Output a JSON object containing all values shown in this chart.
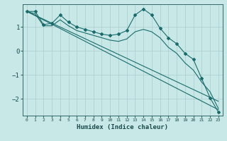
{
  "xlabel": "Humidex (Indice chaleur)",
  "ylabel": "",
  "xlim": [
    -0.5,
    23.5
  ],
  "ylim": [
    -2.7,
    1.95
  ],
  "background_color": "#c8e8e8",
  "grid_color": "#a8cccc",
  "line_color": "#1a6b6b",
  "xticks": [
    0,
    1,
    2,
    3,
    4,
    5,
    6,
    7,
    8,
    9,
    10,
    11,
    12,
    13,
    14,
    15,
    16,
    17,
    18,
    19,
    20,
    21,
    22,
    23
  ],
  "yticks": [
    -2,
    -1,
    0,
    1
  ],
  "series": [
    {
      "x": [
        0,
        1,
        2,
        3,
        4,
        5,
        6,
        7,
        8,
        9,
        10,
        11,
        12,
        13,
        14,
        15,
        16,
        17,
        18,
        19,
        20,
        21,
        22,
        23
      ],
      "y": [
        1.65,
        1.65,
        1.1,
        1.15,
        1.5,
        1.2,
        1.0,
        0.9,
        0.8,
        0.7,
        0.65,
        0.7,
        0.85,
        1.5,
        1.75,
        1.5,
        0.95,
        0.55,
        0.3,
        -0.1,
        -0.35,
        -1.15,
        -1.95,
        -2.55
      ],
      "marker": true
    },
    {
      "x": [
        0,
        1,
        2,
        3,
        4,
        5,
        6,
        7,
        8,
        9,
        10,
        11,
        12,
        13,
        14,
        15,
        16,
        17,
        18,
        19,
        20,
        21,
        22,
        23
      ],
      "y": [
        1.65,
        1.55,
        1.05,
        1.05,
        1.3,
        1.05,
        0.85,
        0.75,
        0.65,
        0.55,
        0.45,
        0.4,
        0.5,
        0.8,
        0.9,
        0.8,
        0.55,
        0.15,
        -0.1,
        -0.5,
        -0.8,
        -1.3,
        -1.7,
        -2.4
      ],
      "marker": false
    },
    {
      "x": [
        0,
        23
      ],
      "y": [
        1.65,
        -2.1
      ],
      "marker": false
    },
    {
      "x": [
        0,
        23
      ],
      "y": [
        1.65,
        -2.45
      ],
      "marker": false
    }
  ]
}
